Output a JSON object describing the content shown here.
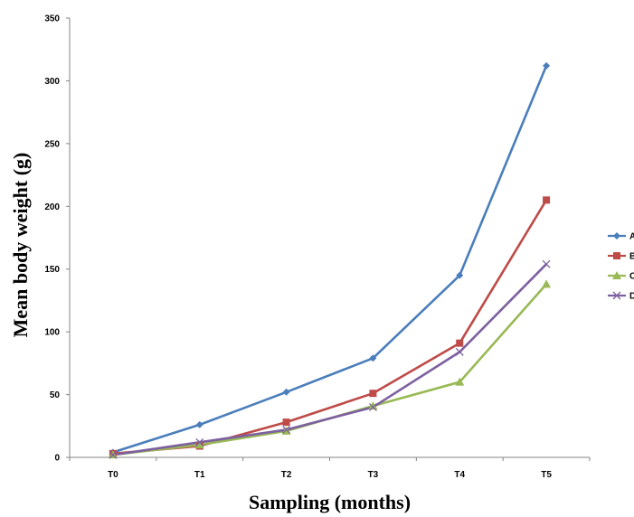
{
  "chart_data": {
    "type": "line",
    "title": "",
    "xlabel": "Sampling (months)",
    "ylabel": "Mean body weight (g)",
    "categories": [
      "T0",
      "T1",
      "T2",
      "T3",
      "T4",
      "T5"
    ],
    "ylim": [
      0,
      350
    ],
    "yticks": [
      "0",
      "50",
      "100",
      "150",
      "200",
      "250",
      "300",
      "350"
    ],
    "grid": false,
    "legend_position": "right",
    "series": [
      {
        "name": "A",
        "color": "#4a7ebb",
        "marker": "diamond",
        "values": [
          4,
          26,
          52,
          79,
          145,
          312
        ]
      },
      {
        "name": "B",
        "color": "#be4b48",
        "marker": "square",
        "values": [
          3,
          9,
          28,
          51,
          91,
          205
        ]
      },
      {
        "name": "C",
        "color": "#98b954",
        "marker": "triangle",
        "values": [
          2,
          10,
          21,
          41,
          60,
          138
        ]
      },
      {
        "name": "D",
        "color": "#7d60a0",
        "marker": "x",
        "values": [
          2,
          12,
          22,
          40,
          84,
          154
        ]
      }
    ]
  }
}
